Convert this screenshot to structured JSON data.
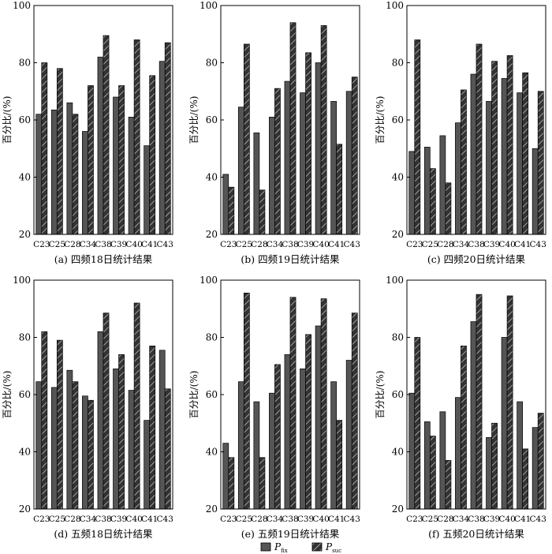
{
  "figure": {
    "legend": {
      "items": [
        {
          "label": "P",
          "subscript": "fix",
          "pattern": "solid-gray"
        },
        {
          "label": "P",
          "subscript": "suc",
          "pattern": "hatched"
        }
      ]
    }
  },
  "colors": {
    "bar_fill": "#555555",
    "hatch_bg": "#333333",
    "hatch_line": "#bbbbbb",
    "axis": "#000000"
  },
  "chart_data": [
    {
      "type": "bar",
      "title": "(a) 四频18日统计结果",
      "ylabel": "百分比/(%)",
      "ylim": [
        20,
        100
      ],
      "yticks": [
        20,
        40,
        60,
        80,
        100
      ],
      "categories": [
        "C23",
        "C25",
        "C28",
        "C34",
        "C38",
        "C39",
        "C40",
        "C41",
        "C43"
      ],
      "series": [
        {
          "name": "P_fix",
          "values": [
            62,
            63.5,
            66,
            56,
            82,
            68,
            61,
            51,
            80.5
          ]
        },
        {
          "name": "P_suc",
          "values": [
            80,
            78,
            62,
            72,
            89.5,
            72,
            88,
            75.5,
            87
          ]
        }
      ]
    },
    {
      "type": "bar",
      "title": "(b) 四频19日统计结果",
      "ylabel": "百分比/(%)",
      "ylim": [
        20,
        100
      ],
      "yticks": [
        20,
        40,
        60,
        80,
        100
      ],
      "categories": [
        "C23",
        "C25",
        "C28",
        "C34",
        "C38",
        "C39",
        "C40",
        "C41",
        "C43"
      ],
      "series": [
        {
          "name": "P_fix",
          "values": [
            41,
            64.5,
            55.5,
            61,
            73.5,
            69.5,
            80,
            66.5,
            70
          ]
        },
        {
          "name": "P_suc",
          "values": [
            36.5,
            86.5,
            35.5,
            71,
            94,
            83.5,
            93,
            51.5,
            75
          ]
        }
      ]
    },
    {
      "type": "bar",
      "title": "(c) 四频20日统计结果",
      "ylabel": "百分比/(%)",
      "ylim": [
        20,
        100
      ],
      "yticks": [
        20,
        40,
        60,
        80,
        100
      ],
      "categories": [
        "C23",
        "C25",
        "C28",
        "C34",
        "C38",
        "C39",
        "C40",
        "C41",
        "C43"
      ],
      "series": [
        {
          "name": "P_fix",
          "values": [
            49,
            50.5,
            54.5,
            59,
            76,
            66.5,
            74.5,
            69.5,
            50
          ]
        },
        {
          "name": "P_suc",
          "values": [
            88,
            43,
            38,
            70.5,
            86.5,
            80.5,
            82.5,
            76.5,
            70
          ]
        }
      ]
    },
    {
      "type": "bar",
      "title": "(d) 五频18日统计结果",
      "ylabel": "百分比/(%)",
      "ylim": [
        20,
        100
      ],
      "yticks": [
        20,
        40,
        60,
        80,
        100
      ],
      "categories": [
        "C23",
        "C25",
        "C28",
        "C34",
        "C38",
        "C39",
        "C40",
        "C41",
        "C43"
      ],
      "series": [
        {
          "name": "P_fix",
          "values": [
            64.5,
            62.5,
            68.5,
            59.5,
            82,
            69,
            61.5,
            51,
            75.5
          ]
        },
        {
          "name": "P_suc",
          "values": [
            82,
            79,
            64.5,
            58,
            88.5,
            74,
            92,
            77,
            62
          ]
        }
      ]
    },
    {
      "type": "bar",
      "title": "(e) 五频19日统计结果",
      "ylabel": "百分比/(%)",
      "ylim": [
        20,
        100
      ],
      "yticks": [
        20,
        40,
        60,
        80,
        100
      ],
      "categories": [
        "C23",
        "C25",
        "C28",
        "C34",
        "C38",
        "C39",
        "C40",
        "C41",
        "C43"
      ],
      "series": [
        {
          "name": "P_fix",
          "values": [
            43,
            64.5,
            57.5,
            60.5,
            74,
            69,
            84,
            64.5,
            72
          ]
        },
        {
          "name": "P_suc",
          "values": [
            38,
            95.5,
            38,
            70.5,
            94,
            81,
            93.5,
            51,
            88.5
          ]
        }
      ]
    },
    {
      "type": "bar",
      "title": "(f) 五频20日统计结果",
      "ylabel": "百分比/(%)",
      "ylim": [
        20,
        100
      ],
      "yticks": [
        20,
        40,
        60,
        80,
        100
      ],
      "categories": [
        "C23",
        "C25",
        "C28",
        "C34",
        "C38",
        "C39",
        "C40",
        "C41",
        "C43"
      ],
      "series": [
        {
          "name": "P_fix",
          "values": [
            60.5,
            50.5,
            54,
            59,
            85.5,
            45,
            80,
            57.5,
            48.5
          ]
        },
        {
          "name": "P_suc",
          "values": [
            80,
            45.5,
            37,
            77,
            95,
            50,
            94.5,
            41,
            53.5
          ]
        }
      ]
    }
  ]
}
